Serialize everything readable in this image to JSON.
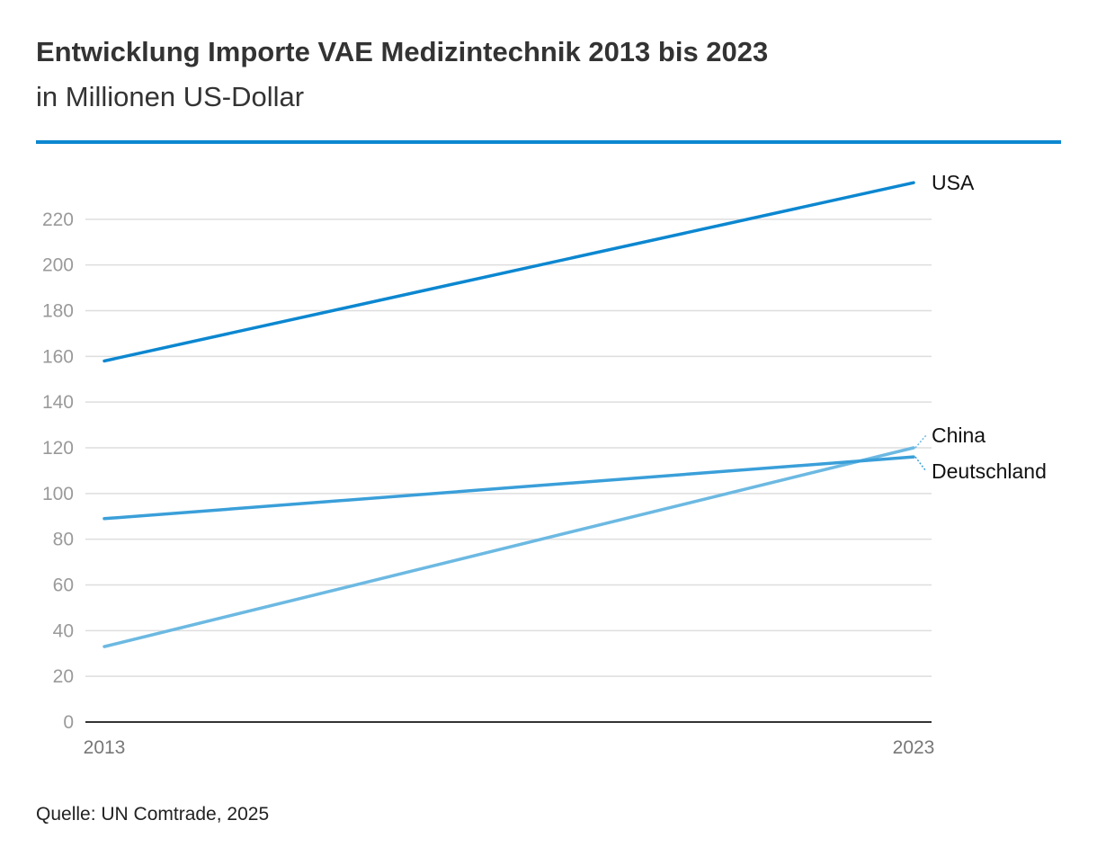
{
  "header": {
    "title": "Entwicklung Importe VAE Medizintechnik 2013 bis 2023",
    "subtitle": "in Millionen US-Dollar"
  },
  "footer": {
    "source": "Quelle: UN Comtrade, 2025"
  },
  "colors": {
    "accent": "#0c87d0",
    "grid": "#dedede",
    "axis": "#333333"
  },
  "chart_data": {
    "type": "line",
    "title": "Entwicklung Importe VAE Medizintechnik 2013 bis 2023",
    "subtitle": "in Millionen US-Dollar",
    "xlabel": "",
    "ylabel": "",
    "x": [
      "2013",
      "2023"
    ],
    "ylim": [
      0,
      240
    ],
    "yticks": [
      0,
      20,
      40,
      60,
      80,
      100,
      120,
      140,
      160,
      180,
      200,
      220
    ],
    "grid": true,
    "legend": "inline-right",
    "series": [
      {
        "name": "USA",
        "values": [
          158,
          236
        ],
        "color": "#0c87d0"
      },
      {
        "name": "China",
        "values": [
          33,
          120
        ],
        "color": "#6cb9e2"
      },
      {
        "name": "Deutschland",
        "values": [
          89,
          116
        ],
        "color": "#3a9fd9"
      }
    ]
  }
}
